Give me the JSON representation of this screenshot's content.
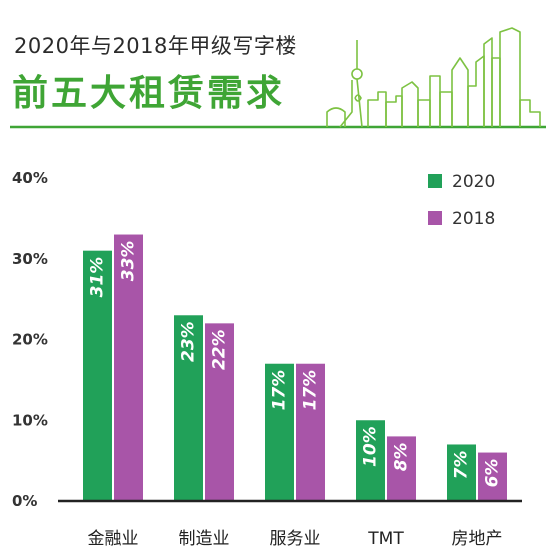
{
  "header": {
    "subtitle": "2020年与2018年甲级写字楼",
    "title": "前五大租赁需求"
  },
  "colors": {
    "series_2020": "#21a159",
    "series_2018": "#a855a8",
    "title_green": "#3fa535",
    "axis": "#222222"
  },
  "chart_data": {
    "type": "bar",
    "title": "前五大租赁需求",
    "subtitle": "2020年与2018年甲级写字楼",
    "categories": [
      "金融业",
      "制造业",
      "服务业",
      "TMT",
      "房地产"
    ],
    "series": [
      {
        "name": "2020",
        "values": [
          31,
          23,
          17,
          10,
          7
        ],
        "labels": [
          "31%",
          "23%",
          "17%",
          "10%",
          "7%"
        ]
      },
      {
        "name": "2018",
        "values": [
          33,
          22,
          17,
          8,
          6
        ],
        "labels": [
          "33%",
          "22%",
          "17%",
          "8%",
          "6%"
        ]
      }
    ],
    "y_ticks": [
      "0%",
      "10%",
      "20%",
      "30%",
      "40%"
    ],
    "ylim": [
      0,
      40
    ],
    "legend_position": "top-right",
    "grid": false
  }
}
